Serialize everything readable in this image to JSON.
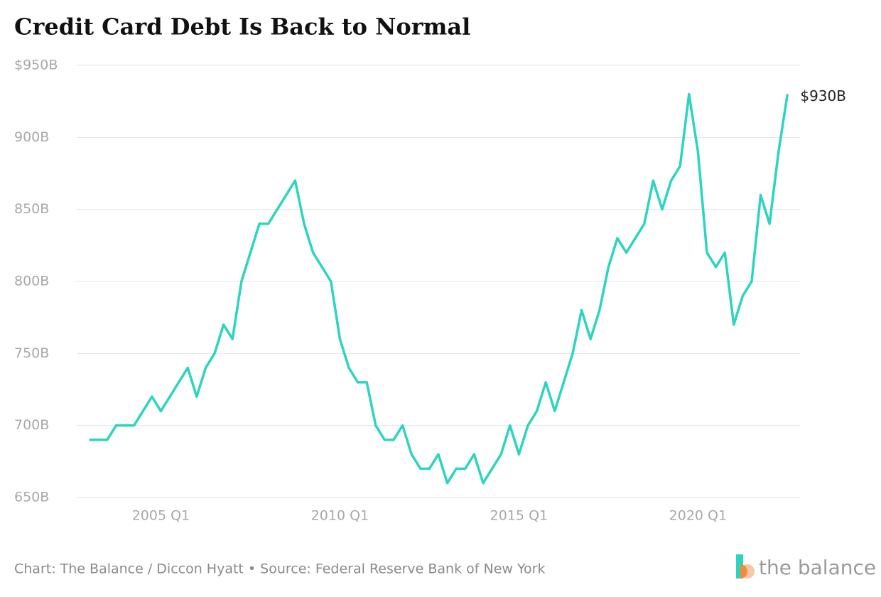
{
  "chart_data": {
    "type": "line",
    "title": "Credit Card Debt Is Back to Normal",
    "source": "Chart: The Balance / Diccon Hyatt • Source: Federal Reserve Bank of New York",
    "brand": "the balance",
    "x": [
      2003,
      2003.25,
      2003.5,
      2003.75,
      2004,
      2004.25,
      2004.5,
      2004.75,
      2005,
      2005.25,
      2005.5,
      2005.75,
      2006,
      2006.25,
      2006.5,
      2006.75,
      2007,
      2007.25,
      2007.5,
      2007.75,
      2008,
      2008.25,
      2008.5,
      2008.75,
      2009,
      2009.25,
      2009.5,
      2009.75,
      2010,
      2010.25,
      2010.5,
      2010.75,
      2011,
      2011.25,
      2011.5,
      2011.75,
      2012,
      2012.25,
      2012.5,
      2012.75,
      2013,
      2013.25,
      2013.5,
      2013.75,
      2014,
      2014.25,
      2014.5,
      2014.75,
      2015,
      2015.25,
      2015.5,
      2015.75,
      2016,
      2016.25,
      2016.5,
      2016.75,
      2017,
      2017.25,
      2017.5,
      2017.75,
      2018,
      2018.25,
      2018.5,
      2018.75,
      2019,
      2019.25,
      2019.5,
      2019.75,
      2020,
      2020.25,
      2020.5,
      2020.75,
      2021,
      2021.25,
      2021.5,
      2021.75,
      2022,
      2022.25,
      2022.5
    ],
    "series": [
      {
        "name": "Credit card debt",
        "color": "#2dd4bf",
        "values": [
          690,
          690,
          690,
          700,
          700,
          700,
          710,
          720,
          710,
          720,
          730,
          740,
          720,
          740,
          750,
          770,
          760,
          800,
          820,
          840,
          840,
          850,
          860,
          870,
          840,
          820,
          810,
          800,
          760,
          740,
          730,
          730,
          700,
          690,
          690,
          700,
          680,
          670,
          670,
          680,
          660,
          670,
          670,
          680,
          660,
          670,
          680,
          700,
          680,
          700,
          710,
          730,
          710,
          730,
          750,
          780,
          760,
          780,
          810,
          830,
          820,
          830,
          840,
          870,
          850,
          870,
          880,
          930,
          890,
          820,
          810,
          820,
          770,
          790,
          800,
          860,
          840,
          890,
          930
        ],
        "value_labels": [
          null,
          null,
          null,
          null,
          null,
          null,
          null,
          null,
          null,
          null,
          null,
          null,
          null,
          null,
          null,
          null,
          null,
          null,
          null,
          null,
          null,
          null,
          null,
          null,
          null,
          null,
          null,
          null,
          null,
          null,
          null,
          null,
          null,
          null,
          null,
          null,
          null,
          null,
          null,
          null,
          null,
          null,
          null,
          null,
          null,
          null,
          null,
          null,
          null,
          null,
          null,
          null,
          null,
          null,
          null,
          null,
          null,
          null,
          null,
          null,
          null,
          null,
          null,
          null,
          null,
          null,
          null,
          null,
          null,
          null,
          null,
          null,
          null,
          null,
          null,
          null,
          null,
          null,
          "$930B"
        ]
      }
    ],
    "xlim": [
      2002.65,
      2022.85
    ],
    "xticks": [
      {
        "value": 2005,
        "label": "2005 Q1"
      },
      {
        "value": 2010,
        "label": "2010 Q1"
      },
      {
        "value": 2015,
        "label": "2015 Q1"
      },
      {
        "value": 2020,
        "label": "2020 Q1"
      }
    ],
    "ylim": [
      650,
      950
    ],
    "yticks": [
      {
        "value": 650,
        "label": "650B"
      },
      {
        "value": 700,
        "label": "700B"
      },
      {
        "value": 750,
        "label": "750B"
      },
      {
        "value": 800,
        "label": "800B"
      },
      {
        "value": 850,
        "label": "850B"
      },
      {
        "value": 900,
        "label": "900B"
      },
      {
        "value": 950,
        "label": "$950B"
      }
    ],
    "grid": true
  }
}
